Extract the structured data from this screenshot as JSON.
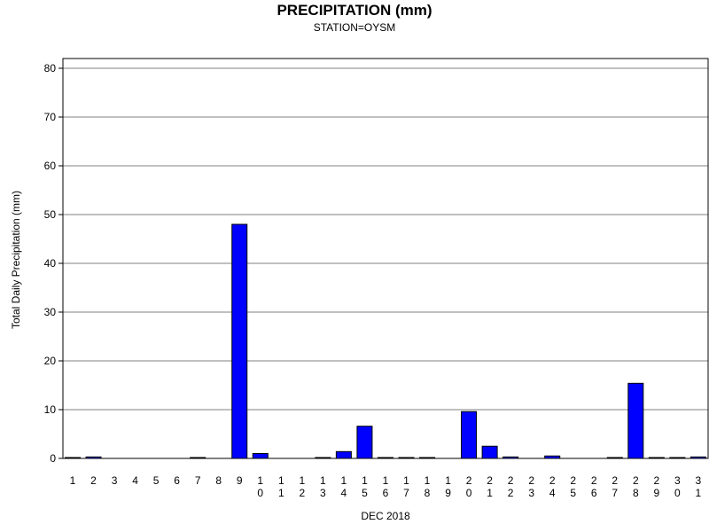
{
  "chart_data": {
    "type": "bar",
    "title": "PRECIPITATION (mm)",
    "subtitle": "STATION=OYSM",
    "xlabel": "DEC 2018",
    "ylabel": "Total Daily Precipitation (mm)",
    "ylim": [
      0,
      80
    ],
    "yticks": [
      "0",
      "10",
      "20",
      "30",
      "40",
      "50",
      "60",
      "70",
      "80"
    ],
    "grid": true,
    "categories": [
      "1",
      "2",
      "3",
      "4",
      "5",
      "6",
      "7",
      "8",
      "9",
      "10",
      "11",
      "12",
      "13",
      "14",
      "15",
      "16",
      "17",
      "18",
      "19",
      "20",
      "21",
      "22",
      "23",
      "24",
      "25",
      "26",
      "27",
      "28",
      "29",
      "30",
      "31"
    ],
    "values": [
      0.1,
      0.3,
      null,
      null,
      null,
      null,
      0.1,
      null,
      48.0,
      1.0,
      null,
      null,
      0.1,
      1.4,
      6.6,
      0.1,
      0.1,
      0.1,
      null,
      9.6,
      2.5,
      0.3,
      null,
      0.5,
      null,
      null,
      0.1,
      15.4,
      0.1,
      0.1,
      0.3
    ],
    "colors": {
      "bar": "#0000ff",
      "bar_edge": "#000000",
      "grid": "#808080",
      "axis": "#000000"
    }
  }
}
